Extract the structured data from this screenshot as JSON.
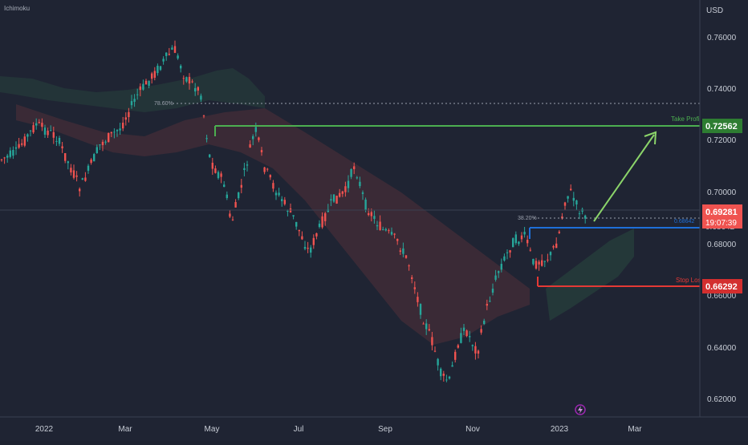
{
  "indicator_label": "Ichimoku",
  "currency_label": "USD",
  "colors": {
    "background": "#1f2433",
    "up": "#26a69a",
    "down": "#ef5350",
    "green_level": "#4caf50",
    "blue_level": "#1e6fd9",
    "red_level": "#e53935",
    "price_badge": "#ef5350"
  },
  "price_axis": {
    "ticks": [
      "0.76000",
      "0.74000",
      "0.72000",
      "0.70000",
      "0.68000",
      "0.66000",
      "0.64000",
      "0.62000"
    ]
  },
  "time_axis": {
    "ticks": [
      "2022",
      "Mar",
      "May",
      "Jul",
      "Sep",
      "Nov",
      "2023",
      "Mar"
    ]
  },
  "levels": {
    "take_profit": {
      "label": "Take Profit",
      "price": "0.72562"
    },
    "entry": {
      "label": "0.68642",
      "price": "0.68642"
    },
    "stop_loss": {
      "label": "Stop Loss",
      "price": "0.66292"
    },
    "fib_786": {
      "label": "78.60%"
    },
    "fib_382": {
      "label": "38.20%"
    }
  },
  "current_price": {
    "price": "0.69281",
    "countdown": "19:07:39"
  },
  "chart_data": {
    "type": "candlestick",
    "symbol_quote": "USD",
    "y_range": [
      0.61,
      0.77
    ],
    "x_range": [
      "2021-12",
      "2023-04"
    ],
    "series_summary": [
      {
        "date": "2022-01",
        "close": 0.715
      },
      {
        "date": "2022-02",
        "close": 0.718
      },
      {
        "date": "2022-03",
        "close": 0.748
      },
      {
        "date": "2022-04",
        "close": 0.74
      },
      {
        "date": "2022-05",
        "close": 0.712
      },
      {
        "date": "2022-06",
        "close": 0.693
      },
      {
        "date": "2022-07",
        "close": 0.69
      },
      {
        "date": "2022-08",
        "close": 0.705
      },
      {
        "date": "2022-09",
        "close": 0.655
      },
      {
        "date": "2022-10",
        "close": 0.625
      },
      {
        "date": "2022-11",
        "close": 0.665
      },
      {
        "date": "2022-12",
        "close": 0.678
      },
      {
        "date": "2023-01",
        "close": 0.693
      }
    ]
  }
}
